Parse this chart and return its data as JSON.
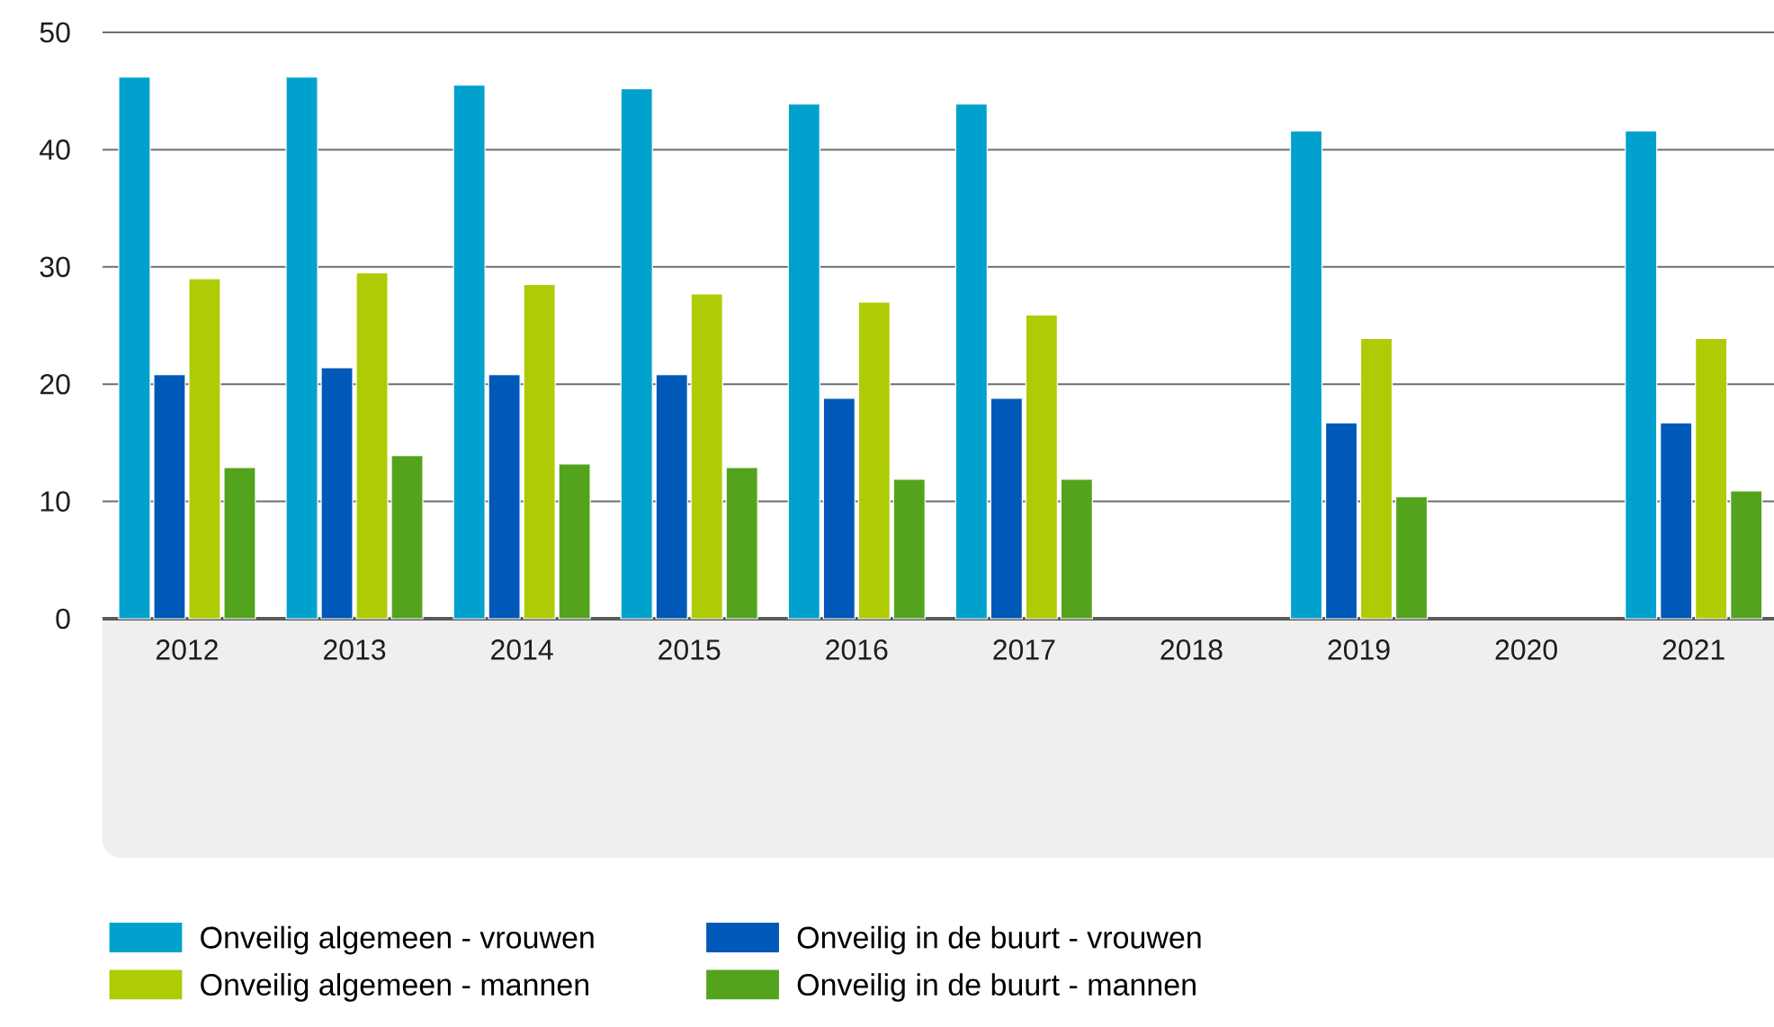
{
  "chart_data": {
    "type": "bar",
    "categories": [
      "2012",
      "2013",
      "2014",
      "2015",
      "2016",
      "2017",
      "2018",
      "2019",
      "2020",
      "2021"
    ],
    "series": [
      {
        "name": "Onveilig algemeen - vrouwen",
        "color": "#00a1cd",
        "values": [
          46.2,
          46.2,
          45.5,
          45.2,
          43.9,
          43.9,
          null,
          41.6,
          null,
          41.6
        ]
      },
      {
        "name": "Onveilig in de buurt - vrouwen",
        "color": "#0058b8",
        "values": [
          20.8,
          21.4,
          20.8,
          20.8,
          18.8,
          18.8,
          null,
          16.7,
          null,
          16.7
        ]
      },
      {
        "name": "Onveilig algemeen - mannen",
        "color": "#afcb05",
        "values": [
          29.0,
          29.5,
          28.5,
          27.7,
          27.0,
          25.9,
          null,
          23.9,
          null,
          23.9
        ]
      },
      {
        "name": "Onveilig in de buurt - mannen",
        "color": "#53a31d",
        "values": [
          12.9,
          13.9,
          13.2,
          12.9,
          11.9,
          11.9,
          null,
          10.4,
          null,
          10.9
        ]
      }
    ],
    "ylim": [
      0,
      50
    ],
    "yticks": [
      0,
      10,
      20,
      30,
      40,
      50
    ],
    "grid": "y",
    "legend": "bottom"
  }
}
